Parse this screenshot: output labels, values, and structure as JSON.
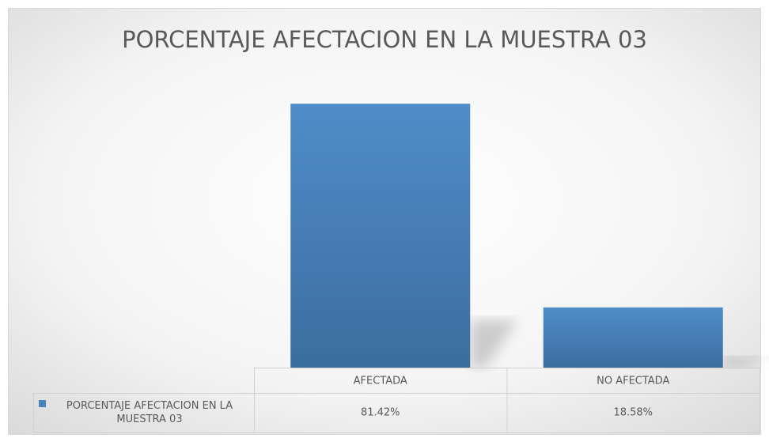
{
  "chart_data": {
    "type": "bar",
    "title": "PORCENTAJE AFECTACION EN LA MUESTRA 03",
    "categories": [
      "AFECTADA",
      "NO AFECTADA"
    ],
    "series": [
      {
        "name": "PORCENTAJE AFECTACION EN LA MUESTRA 03",
        "color": "#4a84bf",
        "values": [
          81.42,
          18.58
        ],
        "value_labels": [
          "81.42%",
          "18.58%"
        ]
      }
    ],
    "ylim": [
      0,
      90
    ],
    "legend": "table"
  }
}
